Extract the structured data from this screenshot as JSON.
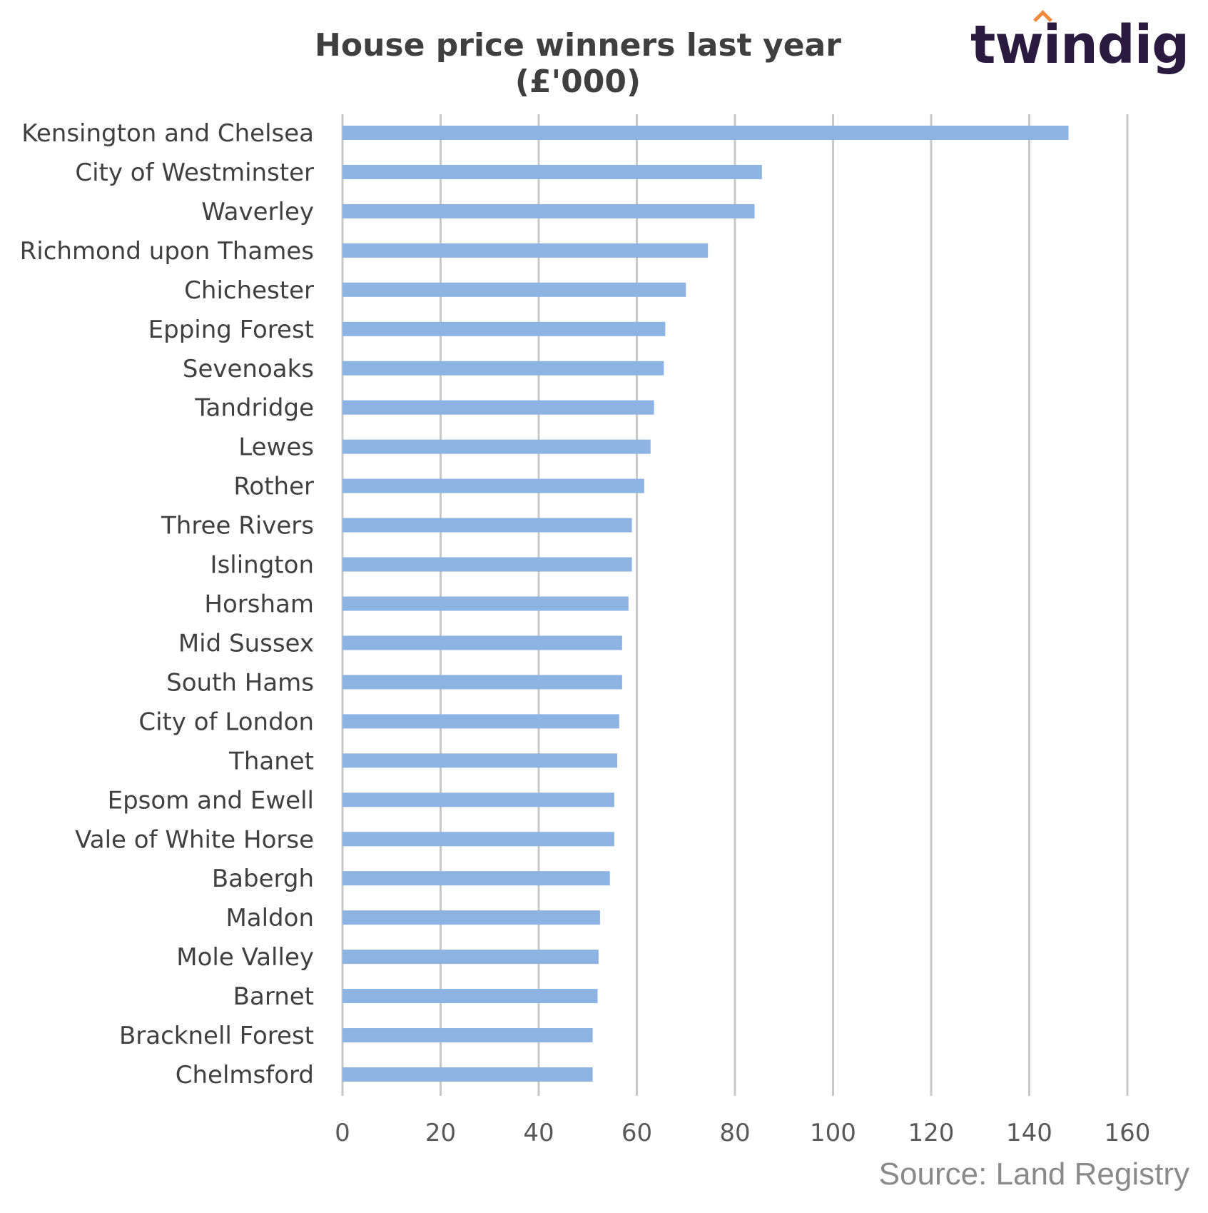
{
  "title": "House price winners last year (£'000)",
  "logo_text": "twindig",
  "source": "Source: Land Registry",
  "bar_color": "#8db3e2",
  "grid_color": "#c8c8c8",
  "chart_data": {
    "type": "bar",
    "orientation": "horizontal",
    "title": "House price winners last year (£'000)",
    "categories": [
      "Kensington and Chelsea",
      "City of Westminster",
      "Waverley",
      "Richmond upon Thames",
      "Chichester",
      "Epping Forest",
      "Sevenoaks",
      "Tandridge",
      "Lewes",
      "Rother",
      "Three Rivers",
      "Islington",
      "Horsham",
      "Mid Sussex",
      "South Hams",
      "City of London",
      "Thanet",
      "Epsom and Ewell",
      "Vale of White Horse",
      "Babergh",
      "Maldon",
      "Mole Valley",
      "Barnet",
      "Bracknell Forest",
      "Chelmsford"
    ],
    "values": [
      148,
      85.5,
      84,
      74.5,
      70,
      65.8,
      65.5,
      63.5,
      62.8,
      61.5,
      59,
      59,
      58.3,
      57,
      57,
      56.4,
      56,
      55.4,
      55.4,
      54.5,
      52.5,
      52.2,
      52,
      51,
      51
    ],
    "xlim": [
      0,
      160
    ],
    "xticks": [
      0,
      20,
      40,
      60,
      80,
      100,
      120,
      140,
      160
    ],
    "grid": true,
    "legend": "none"
  }
}
